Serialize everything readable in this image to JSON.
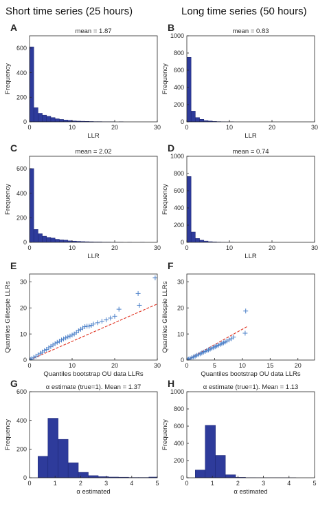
{
  "headers": {
    "left": "Short time series (25 hours)",
    "right": "Long time series (50 hours)"
  },
  "colors": {
    "bar_fill": "#2e3b9b",
    "bar_edge": "#1b2570",
    "qq_marker": "#4a7fc8",
    "qq_reference": "#e0301e"
  },
  "chart_data": [
    {
      "panel": "A",
      "type": "bar",
      "title": "mean = 1.87",
      "xlabel": "LLR",
      "ylabel": "Frequency",
      "xlim": [
        0,
        30
      ],
      "ylim": [
        0,
        700
      ],
      "xticks": [
        0,
        10,
        20,
        30
      ],
      "yticks": [
        0,
        200,
        400,
        600
      ],
      "bin_edges": [
        0,
        1,
        2,
        3,
        4,
        5,
        6,
        7,
        8,
        9,
        10,
        11,
        12,
        13,
        14,
        15,
        16,
        17,
        18,
        19,
        20,
        21,
        22,
        23,
        24,
        25,
        26,
        27,
        28,
        29,
        30
      ],
      "values": [
        610,
        115,
        70,
        55,
        45,
        35,
        25,
        20,
        15,
        12,
        8,
        6,
        5,
        4,
        3,
        2,
        2,
        1,
        1,
        1,
        0,
        1,
        0,
        0,
        0,
        0,
        0,
        0,
        0,
        0
      ]
    },
    {
      "panel": "B",
      "type": "bar",
      "title": "mean = 0.83",
      "xlabel": "LLR",
      "ylabel": "Frequency",
      "xlim": [
        0,
        30
      ],
      "ylim": [
        0,
        1000
      ],
      "xticks": [
        0,
        10,
        20,
        30
      ],
      "yticks": [
        0,
        200,
        400,
        600,
        800,
        1000
      ],
      "bin_edges": [
        0,
        1,
        2,
        3,
        4,
        5,
        6,
        7,
        8,
        9,
        10,
        11,
        12
      ],
      "values": [
        750,
        125,
        50,
        30,
        15,
        10,
        5,
        3,
        2,
        1,
        1,
        0
      ]
    },
    {
      "panel": "C",
      "type": "bar",
      "title": "mean = 2.02",
      "xlabel": "LLR",
      "ylabel": "Frequency",
      "xlim": [
        0,
        30
      ],
      "ylim": [
        0,
        700
      ],
      "xticks": [
        0,
        10,
        20,
        30
      ],
      "yticks": [
        0,
        200,
        400,
        600
      ],
      "bin_edges": [
        0,
        1,
        2,
        3,
        4,
        5,
        6,
        7,
        8,
        9,
        10,
        11,
        12,
        13,
        14,
        15,
        16,
        17,
        18,
        19,
        20,
        21,
        22,
        23,
        24,
        25,
        26,
        27,
        28
      ],
      "values": [
        600,
        105,
        70,
        50,
        40,
        35,
        25,
        20,
        18,
        12,
        10,
        8,
        6,
        5,
        4,
        3,
        3,
        2,
        2,
        1,
        1,
        1,
        0,
        1,
        0,
        0,
        1,
        0
      ]
    },
    {
      "panel": "D",
      "type": "bar",
      "title": "mean = 0.74",
      "xlabel": "LLR",
      "ylabel": "Frequency",
      "xlim": [
        0,
        30
      ],
      "ylim": [
        0,
        1000
      ],
      "xticks": [
        0,
        10,
        20,
        30
      ],
      "yticks": [
        0,
        200,
        400,
        600,
        800,
        1000
      ],
      "bin_edges": [
        0,
        1,
        2,
        3,
        4,
        5,
        6,
        7,
        8,
        9,
        10,
        11
      ],
      "values": [
        765,
        120,
        45,
        25,
        15,
        8,
        5,
        3,
        2,
        1,
        1
      ]
    },
    {
      "panel": "E",
      "type": "scatter",
      "title": "",
      "xlabel": "Quantiles bootstrap OU data LLRs",
      "ylabel": "Quantiles Gillespie LLRs",
      "xlim": [
        0,
        30
      ],
      "ylim": [
        0,
        33
      ],
      "xticks": [
        0,
        10,
        20,
        30
      ],
      "yticks": [
        0,
        10,
        20,
        30
      ],
      "x": [
        0.2,
        0.5,
        1,
        1.5,
        2,
        2.5,
        3,
        3.5,
        4,
        4.5,
        5,
        5.5,
        6,
        6.5,
        7,
        7.5,
        8,
        8.5,
        9,
        9.5,
        10,
        10.5,
        11,
        11.5,
        12,
        12.5,
        13,
        13.5,
        14,
        14.5,
        15,
        16,
        17,
        18,
        19,
        20,
        21,
        25.5,
        25.8,
        29.5
      ],
      "y": [
        0.2,
        0.5,
        1,
        1.5,
        2,
        2.6,
        3.1,
        3.6,
        4.1,
        4.7,
        5.2,
        5.8,
        6.3,
        6.8,
        7.2,
        7.7,
        8.1,
        8.5,
        8.9,
        9.2,
        9.6,
        10,
        10.6,
        11.2,
        11.8,
        12.3,
        12.8,
        13,
        13,
        13.3,
        13.8,
        14.3,
        14.9,
        15.4,
        16.1,
        16.8,
        19.5,
        25.5,
        21,
        31.5
      ],
      "reference_line": {
        "x": [
          0,
          30
        ],
        "y": [
          0,
          21.5
        ]
      }
    },
    {
      "panel": "F",
      "type": "scatter",
      "title": "",
      "xlabel": "Quantiles bootstrap OU data LLRs",
      "ylabel": "Quantiles Gillespie LLRs",
      "xlim": [
        0,
        23
      ],
      "ylim": [
        0,
        33
      ],
      "xticks": [
        0,
        5,
        10,
        15,
        20
      ],
      "yticks": [
        0,
        10,
        20,
        30
      ],
      "x": [
        0.1,
        0.3,
        0.6,
        0.9,
        1.2,
        1.5,
        1.8,
        2.1,
        2.4,
        2.7,
        3,
        3.3,
        3.6,
        3.9,
        4.2,
        4.5,
        4.8,
        5.1,
        5.4,
        5.7,
        6,
        6.3,
        6.6,
        6.9,
        7.2,
        7.6,
        8,
        8.4,
        10.5,
        10.6
      ],
      "y": [
        0.1,
        0.3,
        0.6,
        0.9,
        1.2,
        1.5,
        1.8,
        2.1,
        2.4,
        2.7,
        3,
        3.3,
        3.6,
        3.9,
        4.2,
        4.5,
        4.8,
        5.1,
        5.4,
        5.7,
        6,
        6.3,
        6.6,
        6.9,
        7.3,
        7.7,
        8.2,
        8.8,
        10.3,
        18.8
      ],
      "reference_line": {
        "x": [
          0,
          11
        ],
        "y": [
          0,
          13
        ]
      }
    },
    {
      "panel": "G",
      "type": "bar",
      "title": "α estimate (true=1). Mean = 1.37",
      "xlabel": "α estimated",
      "ylabel": "Frequency",
      "xlim": [
        0,
        5
      ],
      "ylim": [
        0,
        600
      ],
      "xticks": [
        0,
        1,
        2,
        3,
        4,
        5
      ],
      "yticks": [
        0,
        200,
        400,
        600
      ],
      "bin_edges": [
        0.33,
        0.72,
        1.12,
        1.51,
        1.91,
        2.3,
        2.69,
        3.09,
        3.48,
        3.88,
        4.27,
        4.67,
        5.0
      ],
      "values": [
        150,
        415,
        268,
        105,
        38,
        15,
        8,
        5,
        4,
        2,
        2,
        5
      ]
    },
    {
      "panel": "H",
      "type": "bar",
      "title": "α estimate (true=1). Mean = 1.13",
      "xlabel": "α estimated",
      "ylabel": "Frequency",
      "xlim": [
        0,
        5
      ],
      "ylim": [
        0,
        1000
      ],
      "xticks": [
        0,
        1,
        2,
        3,
        4,
        5
      ],
      "yticks": [
        0,
        200,
        400,
        600,
        800,
        1000
      ],
      "bin_edges": [
        0.33,
        0.72,
        1.12,
        1.51,
        1.91,
        2.3,
        2.69,
        3.09,
        3.48,
        3.88,
        4.27
      ],
      "values": [
        90,
        610,
        260,
        35,
        5,
        2,
        1,
        1,
        1,
        1
      ]
    }
  ]
}
